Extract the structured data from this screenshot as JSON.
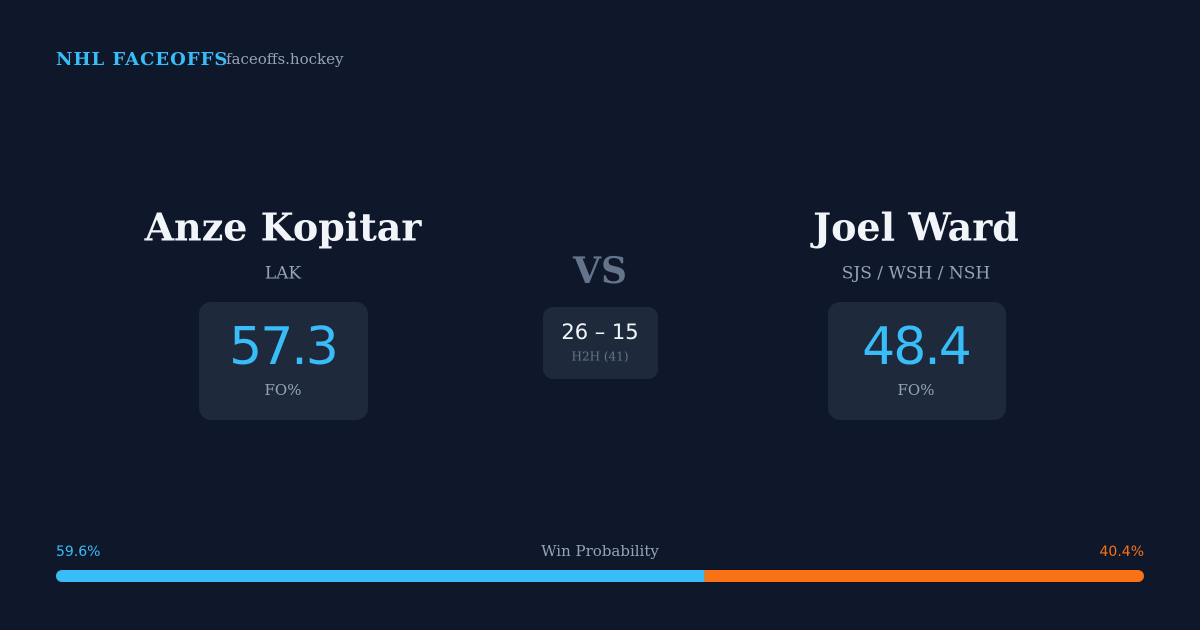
{
  "header": {
    "title": "NHL FACEOFFS",
    "site": "faceoffs.hockey"
  },
  "players": [
    {
      "name": "Anze Kopitar",
      "team": "LAK",
      "fo_pct": 57.3,
      "fo_label": "FO%"
    },
    {
      "name": "Joel Ward",
      "team": "SJS / WSH / NSH",
      "fo_pct": 48.4,
      "fo_label": "FO%"
    }
  ],
  "versus": "VS",
  "head_to_head": {
    "record": "26 – 15",
    "label": "H2H (41)"
  },
  "win_probability": {
    "label": "Win Probability",
    "values": [
      59.6,
      40.4
    ],
    "value_labels": [
      "59.6%",
      "40.4%"
    ],
    "colors": [
      "#38bdf8",
      "#f97316"
    ]
  }
}
